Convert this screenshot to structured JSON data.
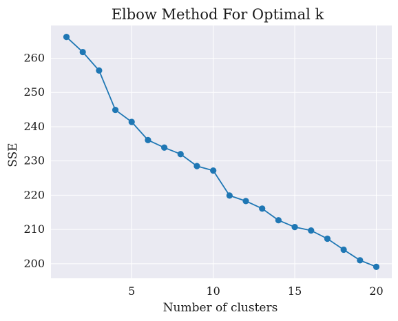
{
  "chart_data": {
    "type": "line",
    "title": "Elbow Method For Optimal k",
    "xlabel": "Number of clusters",
    "ylabel": "SSE",
    "x": [
      1,
      2,
      3,
      4,
      5,
      6,
      7,
      8,
      9,
      10,
      11,
      12,
      13,
      14,
      15,
      16,
      17,
      18,
      19,
      20
    ],
    "series": [
      {
        "values": [
          266.2,
          261.8,
          256.4,
          244.9,
          241.4,
          236.1,
          233.9,
          232.0,
          228.5,
          227.2,
          219.9,
          218.3,
          216.1,
          212.7,
          210.7,
          209.7,
          207.3,
          204.1,
          201.0,
          199.1
        ]
      }
    ],
    "xlim": [
      0.05,
      20.95
    ],
    "ylim": [
      195.75,
      269.55
    ],
    "xticks": [
      5,
      10,
      15,
      20
    ],
    "yticks": [
      200,
      210,
      220,
      230,
      240,
      250,
      260
    ],
    "grid": true,
    "legend": "none",
    "colors": {
      "plot_background": "#eaeaf2",
      "grid": "#ffffff",
      "line": "#1f77b4",
      "marker": "#1f77b4"
    },
    "marker": "circle"
  }
}
